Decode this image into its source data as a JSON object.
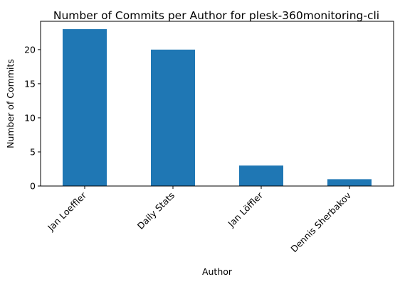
{
  "chart_data": {
    "type": "bar",
    "title": "Number of Commits per Author for plesk-360monitoring-cli",
    "xlabel": "Author",
    "ylabel": "Number of Commits",
    "categories": [
      "Jan Loeffler",
      "Daily Stats",
      "Jan Löffler",
      "Dennis Sherbakov"
    ],
    "values": [
      23,
      20,
      3,
      1
    ],
    "ylim": [
      0,
      24.15
    ],
    "yticks": [
      0,
      5,
      10,
      15,
      20
    ],
    "grid": false,
    "bar_color": "#1f77b4"
  }
}
